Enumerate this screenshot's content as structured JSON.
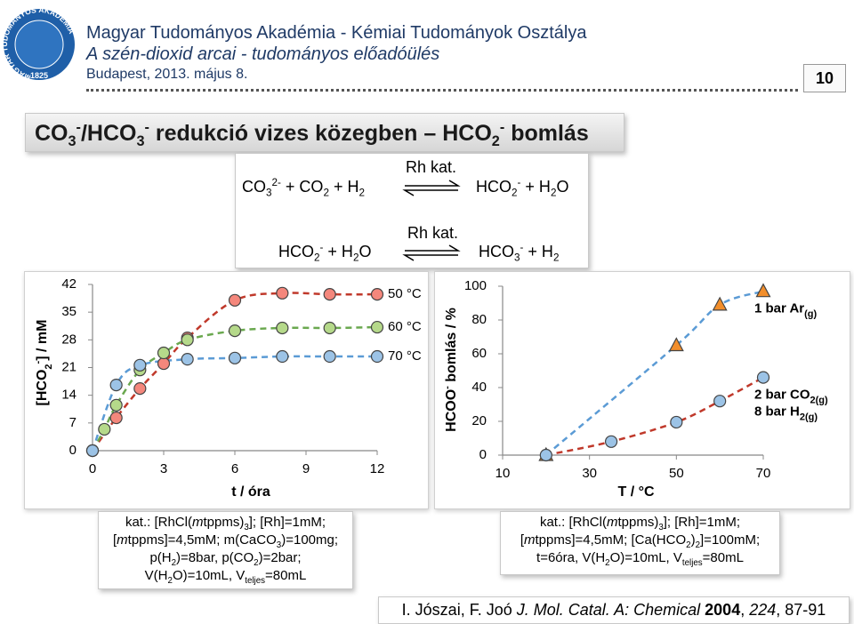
{
  "header": {
    "logo_text": "MAGYAR TUDOMÁNYOS AKADÉMIA",
    "logo_year": "1825",
    "org": "Magyar Tudományos Akadémia - Kémiai Tudományok Osztálya",
    "event": "A szén-dioxid arcai - tudományos előadóülés",
    "date": "Budapest, 2013. május 8.",
    "slide_number": "10"
  },
  "title": [
    "CO",
    "3",
    "-",
    "/HCO",
    "3",
    "-",
    " redukció vizes közegben – HCO",
    "2",
    "-",
    " bomlás"
  ],
  "reaction1": [
    "CO",
    "3",
    "2-",
    " + CO",
    "2",
    " + H",
    "2",
    "Rh kat.",
    "HCO",
    "2",
    "-",
    " + H",
    "2",
    "O"
  ],
  "reaction2": [
    "HCO",
    "2",
    "-",
    " + H",
    "2",
    "O",
    "Rh kat.",
    "HCO",
    "3",
    "-",
    " + H",
    "2"
  ],
  "chart_data": [
    {
      "type": "line",
      "y_label": [
        "[HCO",
        "2",
        "-",
        "] / mM"
      ],
      "x_label": "t / óra",
      "xlim": [
        0,
        12
      ],
      "xticks": [
        0,
        3,
        6,
        9,
        12
      ],
      "ylim": [
        0,
        42
      ],
      "yticks": [
        0,
        7,
        14,
        21,
        28,
        35,
        42
      ],
      "legend": "inline",
      "series": [
        {
          "name": "50 °C",
          "color": "#c0392b",
          "marker_color": "#f4877c",
          "marker": "circle",
          "x": [
            0,
            1,
            2,
            3,
            4,
            6,
            8,
            10,
            12
          ],
          "values": [
            0,
            8.3,
            15.7,
            22,
            28.5,
            38,
            39.8,
            39.5,
            39.5
          ]
        },
        {
          "name": "60 °C",
          "color": "#6aa84f",
          "marker_color": "#b5d98a",
          "marker": "circle",
          "x": [
            0,
            0.5,
            1,
            2,
            3,
            4,
            6,
            8,
            10,
            12
          ],
          "values": [
            0,
            5.4,
            11.5,
            20.4,
            24.7,
            28,
            30.3,
            31,
            31,
            31.2
          ]
        },
        {
          "name": "70 °C",
          "color": "#5b9bd5",
          "marker_color": "#9cc3e6",
          "marker": "circle",
          "x": [
            0,
            1,
            2,
            4,
            6,
            8,
            10,
            12
          ],
          "values": [
            0,
            16.6,
            21.6,
            23.1,
            23.4,
            23.8,
            23.8,
            23.8
          ]
        }
      ]
    },
    {
      "type": "line",
      "y_label": [
        "HCOO",
        "-",
        " bomlás / %"
      ],
      "x_label": "T / °C",
      "xlim": [
        10,
        70
      ],
      "xticks": [
        10,
        30,
        50,
        70
      ],
      "ylim": [
        0,
        100
      ],
      "yticks": [
        0,
        20,
        40,
        60,
        80,
        100
      ],
      "legend": "right",
      "series": [
        {
          "name": [
            "1 bar Ar",
            "(g)"
          ],
          "color": "#5b9bd5",
          "marker_color": "#f28e2b",
          "marker": "triangle",
          "x": [
            20,
            50,
            60,
            70
          ],
          "values": [
            0,
            65,
            89,
            97
          ]
        },
        {
          "name": [
            "2 bar CO",
            "2(g)",
            "8 bar H",
            "2(g)"
          ],
          "color": "#c0392b",
          "marker_color": "#9cc3e6",
          "marker": "circle",
          "x": [
            20,
            35,
            50,
            60,
            70
          ],
          "values": [
            0,
            8,
            19.5,
            32,
            46
          ]
        }
      ]
    }
  ],
  "caption1": [
    [
      "kat.: [RhCl(",
      "m",
      "tppms)",
      "3",
      "]; [Rh]=1mM;"
    ],
    [
      "[",
      "m",
      "tppms]=4,5mM; m(CaCO",
      "3",
      ")=100mg;"
    ],
    [
      "p(H",
      "2",
      ")=8bar, p(CO",
      "2",
      ")=2bar;"
    ],
    [
      "V(H",
      "2",
      "O)=10mL, V",
      "teljes",
      "=80mL"
    ]
  ],
  "caption2": [
    [
      "kat.: [RhCl(",
      "m",
      "tppms)",
      "3",
      "]; [Rh]=1mM;"
    ],
    [
      "[",
      "m",
      "tppms]=4,5mM; [Ca(HCO",
      "2",
      ")",
      "2",
      "]=100mM;"
    ],
    [
      "t=6óra, V(H",
      "2",
      "O)=10mL, V",
      "teljes",
      "=80mL"
    ]
  ],
  "reference": [
    "I. Jószai, F. Joó ",
    "J. Mol. Catal. A: Chemical",
    " ",
    "2004",
    ", ",
    "224",
    ", 87-91"
  ]
}
